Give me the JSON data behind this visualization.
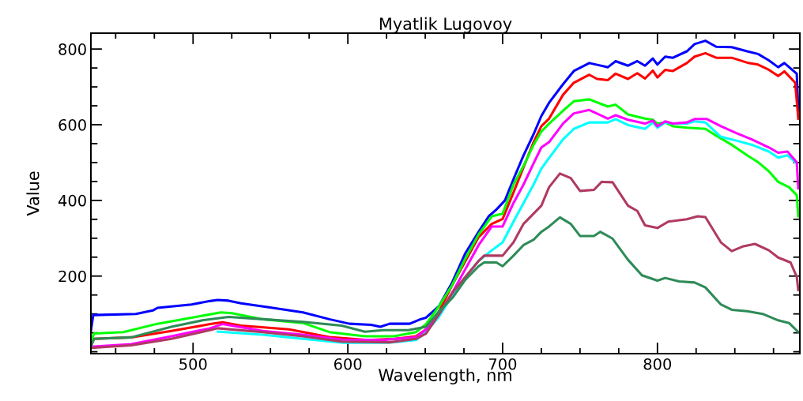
{
  "chart_data": {
    "type": "line",
    "title": "Myatlik Lugovoy",
    "xlabel": "Wavelength, nm",
    "ylabel": "Value",
    "xlim": [
      434,
      892
    ],
    "ylim": [
      -5,
      842
    ],
    "xticks": [
      500,
      600,
      700,
      800
    ],
    "yticks": [
      200,
      400,
      600,
      800
    ],
    "grid": false,
    "line_style": "solid",
    "series": [
      {
        "color": "#0000ff",
        "x": [
          434,
          435.5,
          463,
          474,
          477,
          499,
          511,
          516,
          523,
          531,
          548,
          571,
          588,
          601,
          615,
          621,
          627,
          640,
          647,
          650.5,
          659,
          667.5,
          676,
          684.5,
          691,
          696,
          701.5,
          707,
          713.5,
          720,
          725,
          730,
          739,
          746,
          756,
          768,
          773,
          781,
          787,
          792,
          797,
          800,
          805,
          810,
          819,
          824,
          831,
          838,
          848,
          858,
          865,
          872,
          878,
          882,
          890,
          891
        ],
        "values": [
          55,
          97,
          100,
          109,
          116,
          125,
          134,
          137,
          135,
          128,
          118,
          104,
          86,
          74,
          71,
          66,
          74,
          74,
          86,
          90,
          121,
          184,
          261,
          317,
          358,
          376,
          400,
          456,
          519,
          575,
          623,
          658,
          707,
          742,
          763,
          752,
          768,
          756,
          768,
          756,
          775,
          759,
          780,
          777,
          794,
          813,
          822,
          806,
          805,
          794,
          787,
          770,
          752,
          763,
          735,
          637
        ]
      },
      {
        "color": "#ff0000",
        "x": [
          434,
          436,
          460,
          486,
          511,
          519,
          531,
          562,
          588,
          613,
          630,
          644,
          650.5,
          659,
          667.5,
          676,
          684.5,
          693,
          700,
          707,
          720,
          725,
          730,
          739,
          746,
          756,
          761,
          768,
          773,
          781,
          787,
          792,
          797,
          800,
          805,
          810,
          819,
          824,
          831,
          838,
          848,
          858,
          865,
          872,
          878,
          882,
          889,
          891
        ],
        "values": [
          17,
          34,
          38,
          55,
          73,
          78,
          69,
          59,
          39,
          31,
          34,
          41,
          59,
          107,
          177,
          240,
          303,
          338,
          351,
          421,
          554,
          596,
          616,
          679,
          711,
          732,
          721,
          718,
          735,
          721,
          736,
          722,
          743,
          725,
          745,
          742,
          763,
          780,
          789,
          777,
          777,
          764,
          759,
          745,
          729,
          741,
          711,
          616
        ]
      },
      {
        "color": "#00ff00",
        "x": [
          434,
          436,
          455,
          477,
          499,
          518,
          525,
          545,
          571,
          588,
          611,
          630,
          644,
          650.5,
          659,
          667.5,
          676,
          684.5,
          693,
          700,
          707,
          713.5,
          720,
          725,
          730,
          739,
          746,
          756,
          768,
          773,
          781,
          792,
          797,
          800,
          805,
          810,
          819,
          831,
          838,
          848,
          858,
          865,
          872,
          878,
          885,
          890,
          891
        ],
        "values": [
          27,
          48,
          52,
          74,
          90,
          104,
          102,
          86,
          76,
          52,
          41,
          41,
          52,
          73,
          121,
          177,
          247,
          310,
          358,
          365,
          442,
          491,
          547,
          582,
          603,
          637,
          662,
          667,
          648,
          653,
          627,
          616,
          613,
          603,
          606,
          596,
          592,
          589,
          571,
          547,
          519,
          501,
          477,
          449,
          435,
          414,
          358
        ]
      },
      {
        "color": "#00ffff",
        "x": [
          516,
          545,
          571,
          596,
          627,
          644,
          650.5,
          659,
          667.5,
          676,
          684.5,
          693,
          700,
          707,
          713.5,
          720,
          725,
          730,
          739,
          746,
          756,
          768,
          773,
          781,
          792,
          797,
          800,
          805,
          810,
          819,
          824,
          831,
          841,
          851,
          861,
          872,
          878,
          884,
          890
        ],
        "values": [
          53,
          45,
          34,
          24,
          24,
          31,
          52,
          93,
          149,
          198,
          240,
          268,
          289,
          344,
          393,
          442,
          484,
          512,
          561,
          589,
          606,
          606,
          615,
          599,
          589,
          606,
          592,
          606,
          603,
          603,
          609,
          606,
          568,
          558,
          547,
          529,
          513,
          519,
          498
        ]
      },
      {
        "color": "#ff00ff",
        "x": [
          434,
          460,
          486,
          511,
          519,
          545,
          571,
          596,
          622,
          644,
          650.5,
          659,
          667.5,
          676,
          684.5,
          693,
          700,
          707,
          713.5,
          720,
          725,
          730,
          739,
          746,
          756,
          768,
          773,
          781,
          792,
          797,
          800,
          805,
          810,
          819,
          824,
          832,
          841,
          851,
          861,
          872,
          878,
          884,
          890,
          891
        ],
        "values": [
          13,
          20,
          41,
          62,
          73,
          55,
          45,
          32,
          31,
          38,
          59,
          100,
          156,
          219,
          282,
          331,
          331,
          393,
          442,
          498,
          540,
          554,
          603,
          630,
          639,
          616,
          625,
          613,
          603,
          611,
          596,
          609,
          603,
          606,
          615,
          615,
          596,
          578,
          561,
          540,
          526,
          529,
          501,
          432
        ]
      },
      {
        "color": "#b03a60",
        "x": [
          434,
          460,
          486,
          516,
          545,
          571,
          596,
          627,
          644,
          650.5,
          659,
          667.5,
          676,
          684.5,
          688,
          700,
          707,
          713.5,
          720,
          725,
          730,
          737,
          744,
          750,
          759,
          764,
          771,
          781,
          787,
          792,
          800,
          807,
          819,
          826,
          831,
          841,
          848,
          855,
          863,
          872,
          878,
          886,
          890,
          891
        ],
        "values": [
          10,
          17,
          34,
          62,
          52,
          41,
          27,
          25,
          34,
          48,
          100,
          156,
          198,
          240,
          254,
          254,
          289,
          338,
          365,
          386,
          435,
          471,
          459,
          425,
          428,
          449,
          448,
          386,
          372,
          334,
          327,
          344,
          350,
          358,
          356,
          289,
          266,
          278,
          285,
          268,
          249,
          236,
          198,
          163
        ]
      },
      {
        "color": "#2e8b57",
        "x": [
          434,
          436,
          460,
          486,
          506,
          523,
          545,
          571,
          596,
          611,
          623,
          639,
          650.5,
          659,
          667.5,
          676,
          684.5,
          688,
          696,
          700,
          707,
          713.5,
          720,
          725,
          730,
          737,
          744,
          750,
          759,
          763,
          771,
          781,
          790,
          800,
          805,
          814,
          824,
          831,
          841,
          848,
          858,
          868,
          878,
          885,
          891
        ],
        "values": [
          13,
          34,
          38,
          66,
          83,
          92,
          86,
          79,
          69,
          53,
          57,
          57,
          66,
          107,
          142,
          191,
          226,
          236,
          236,
          226,
          254,
          282,
          296,
          317,
          331,
          355,
          338,
          306,
          306,
          317,
          299,
          243,
          202,
          188,
          195,
          186,
          183,
          170,
          125,
          111,
          107,
          100,
          83,
          76,
          52
        ]
      }
    ]
  }
}
